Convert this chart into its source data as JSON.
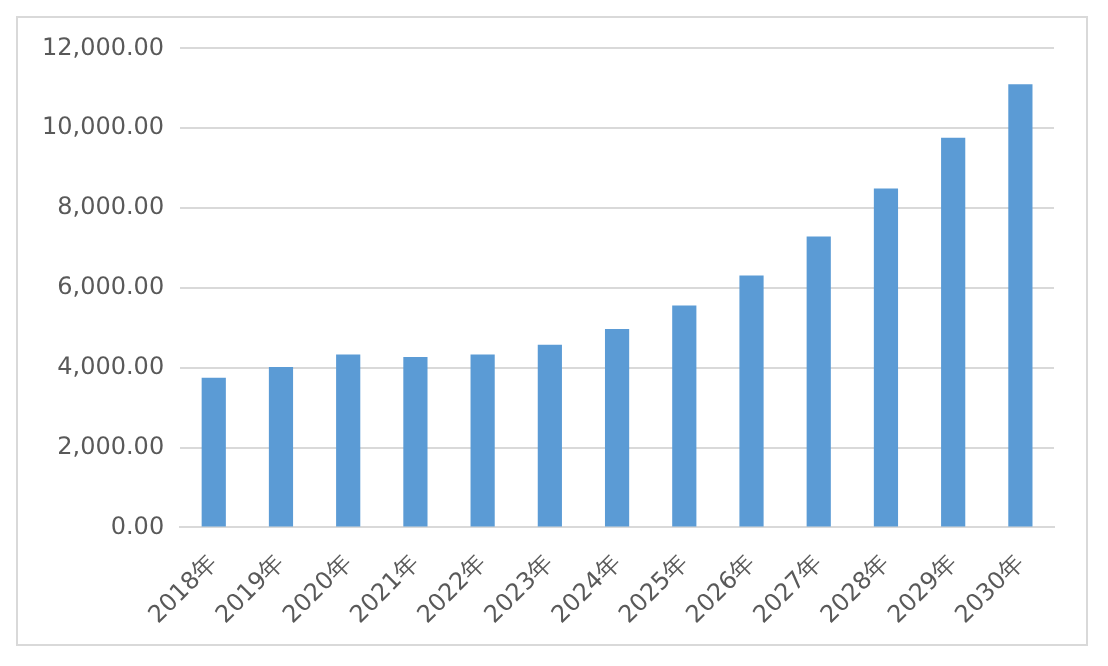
{
  "chart_data": {
    "type": "bar",
    "categories": [
      "2018年",
      "2019年",
      "2020年",
      "2021年",
      "2022年",
      "2023年",
      "2024年",
      "2025年",
      "2026年",
      "2027年",
      "2028年",
      "2029年",
      "2030年"
    ],
    "values": [
      3750,
      4020,
      4330,
      4270,
      4330,
      4580,
      4970,
      5560,
      6310,
      7290,
      8490,
      9760,
      11100
    ],
    "color": "#5b9bd5",
    "ylim": [
      0,
      12000
    ],
    "yticks": [
      {
        "value": 0,
        "label": "0.00"
      },
      {
        "value": 2000,
        "label": "2,000.00"
      },
      {
        "value": 4000,
        "label": "4,000.00"
      },
      {
        "value": 6000,
        "label": "6,000.00"
      },
      {
        "value": 8000,
        "label": "8,000.00"
      },
      {
        "value": 10000,
        "label": "10,000.00"
      },
      {
        "value": 12000,
        "label": "12,000.00"
      }
    ],
    "grid": "y"
  }
}
